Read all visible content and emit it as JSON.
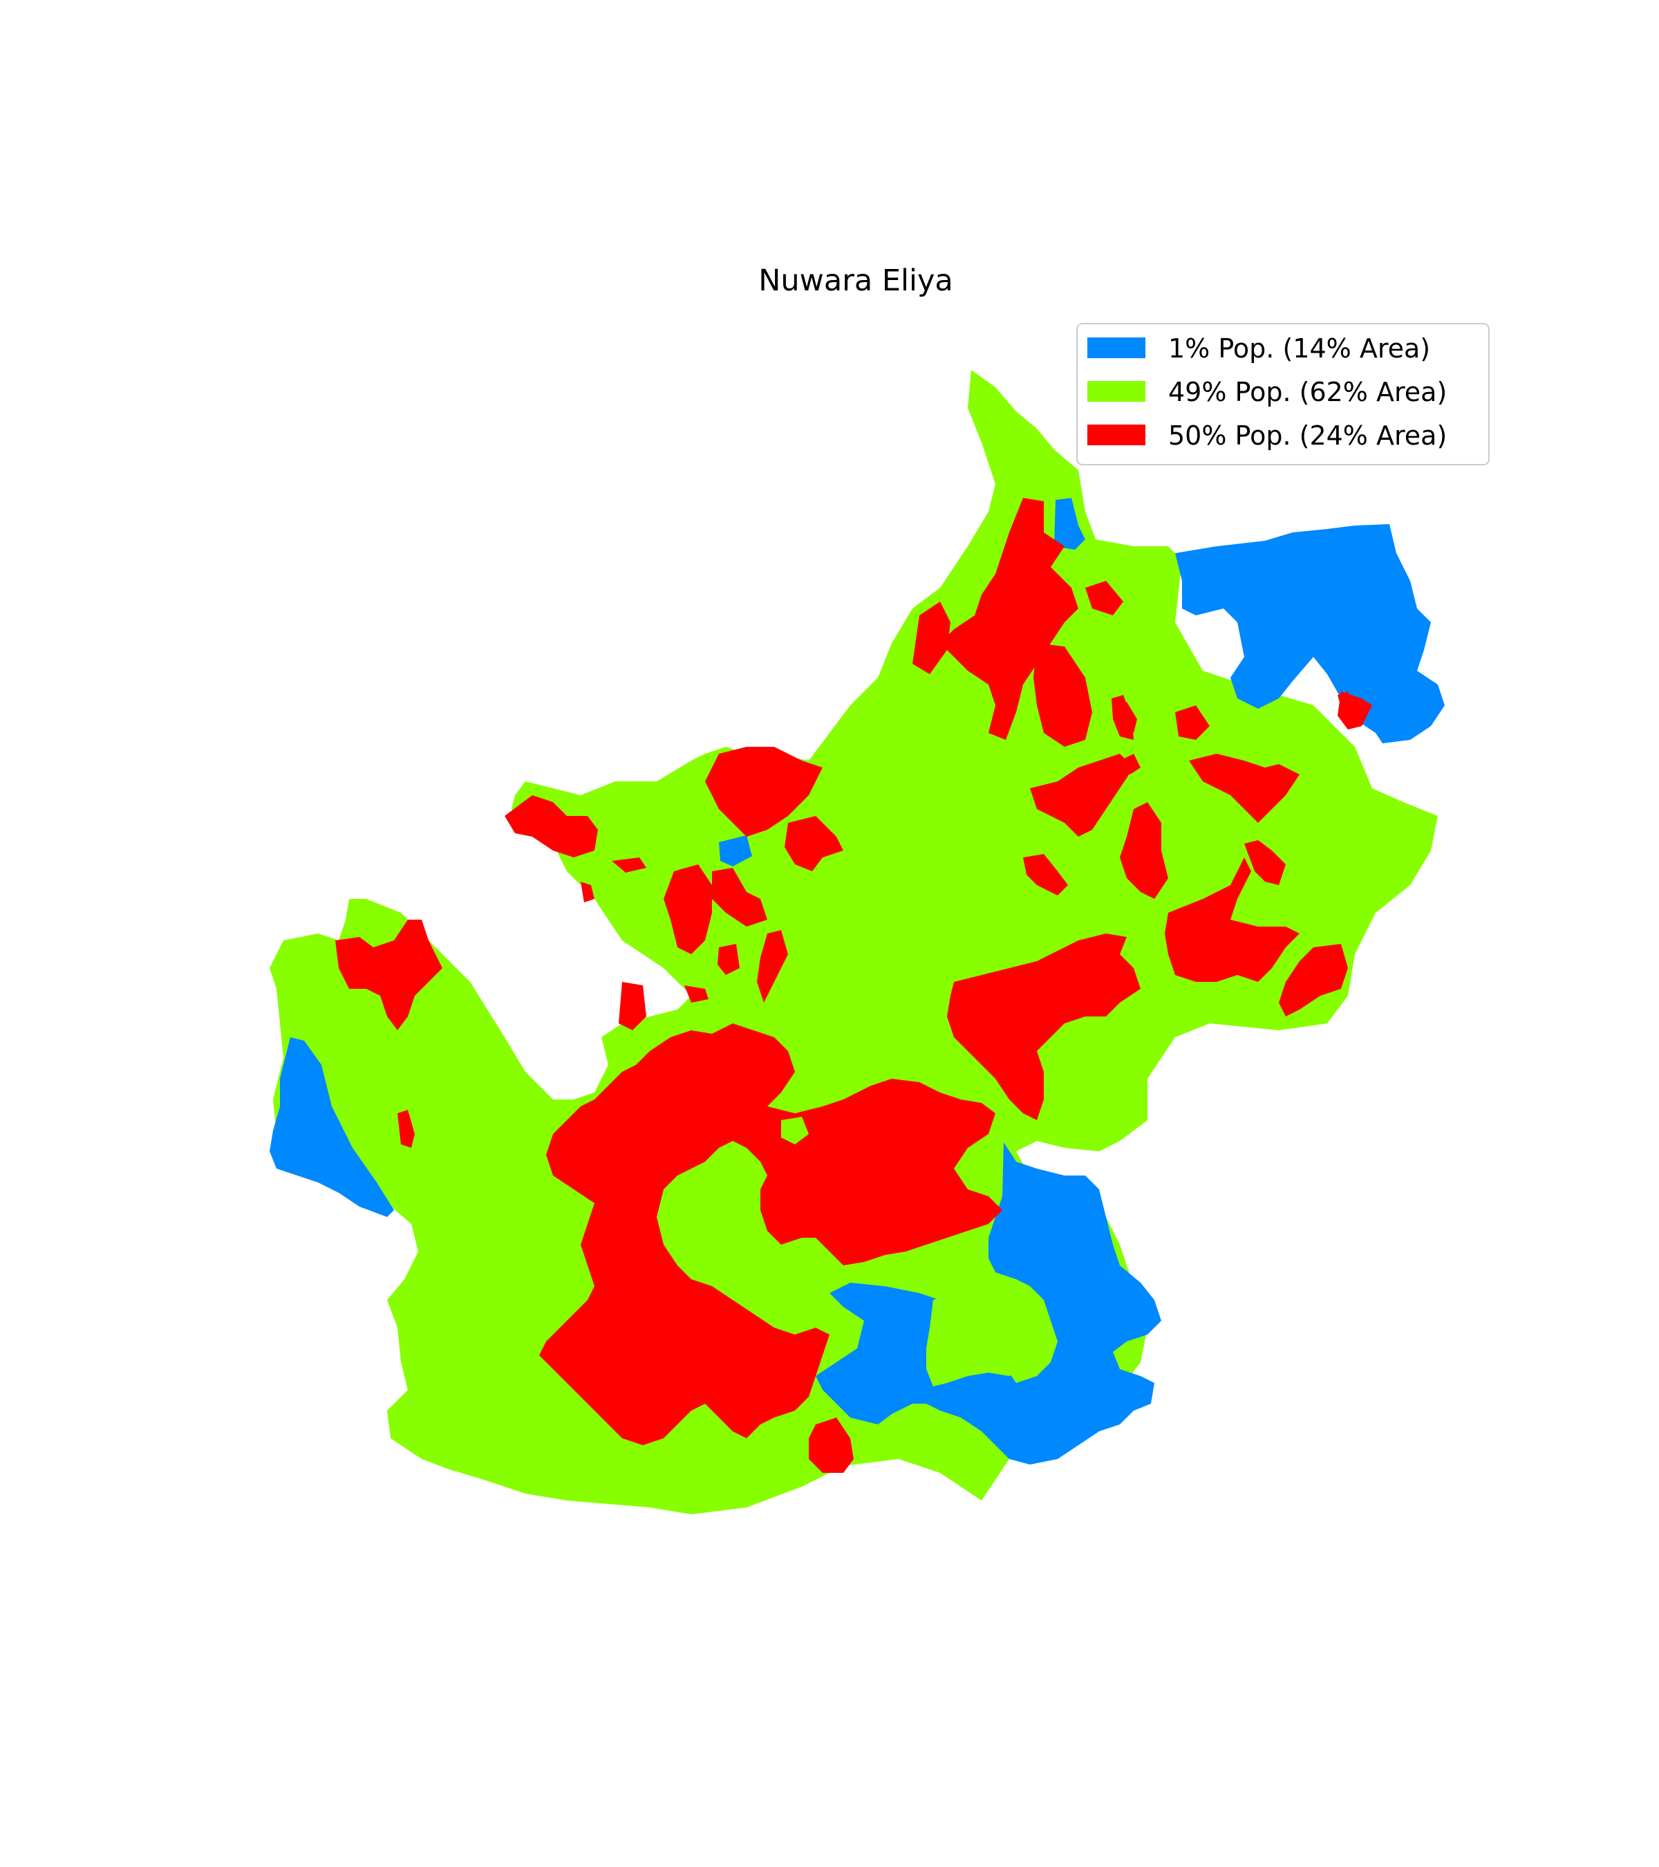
{
  "map": {
    "title": "Nuwara Eliya",
    "colors": {
      "blue": "#0088ff",
      "green": "#88ff00",
      "red": "#ff0000"
    }
  },
  "legend": {
    "placement": "top-right",
    "items": [
      {
        "label": "1% Pop. (14% Area)",
        "color": "#0088ff",
        "population_pct": 1,
        "area_pct": 14
      },
      {
        "label": "49% Pop. (62% Area)",
        "color": "#88ff00",
        "population_pct": 49,
        "area_pct": 62
      },
      {
        "label": "50% Pop. (24% Area)",
        "color": "#ff0000",
        "population_pct": 50,
        "area_pct": 24
      }
    ]
  }
}
